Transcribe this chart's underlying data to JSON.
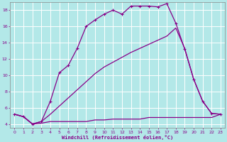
{
  "xlabel": "Windchill (Refroidissement éolien,°C)",
  "background_color": "#b3e8e8",
  "grid_color": "#ffffff",
  "line_color": "#880088",
  "xlim": [
    -0.5,
    23.5
  ],
  "ylim": [
    3.5,
    19.0
  ],
  "yticks": [
    4,
    6,
    8,
    10,
    12,
    14,
    16,
    18
  ],
  "xticks": [
    0,
    1,
    2,
    3,
    4,
    5,
    6,
    7,
    8,
    9,
    10,
    11,
    12,
    13,
    14,
    15,
    16,
    17,
    18,
    19,
    20,
    21,
    22,
    23
  ],
  "series": [
    {
      "x": [
        0,
        1,
        2,
        3,
        4,
        5,
        6,
        7,
        8,
        9,
        10,
        11,
        12,
        13,
        14,
        15,
        16,
        17,
        18,
        19,
        20,
        21,
        22,
        23
      ],
      "y": [
        5.2,
        4.9,
        4.0,
        4.1,
        4.3,
        4.3,
        4.3,
        4.3,
        4.3,
        4.5,
        4.5,
        4.6,
        4.6,
        4.6,
        4.6,
        4.8,
        4.8,
        4.8,
        4.8,
        4.8,
        4.8,
        4.8,
        4.8,
        5.2
      ],
      "marker": false
    },
    {
      "x": [
        0,
        1,
        2,
        3,
        4,
        5,
        6,
        7,
        8,
        9,
        10,
        11,
        12,
        13,
        14,
        15,
        16,
        17,
        18,
        19,
        20,
        21,
        22,
        23
      ],
      "y": [
        5.2,
        4.9,
        4.0,
        4.3,
        5.2,
        6.2,
        7.2,
        8.2,
        9.2,
        10.2,
        11.0,
        11.6,
        12.2,
        12.8,
        13.3,
        13.8,
        14.3,
        14.8,
        15.8,
        13.3,
        9.5,
        6.8,
        5.3,
        5.2
      ],
      "marker": false
    },
    {
      "x": [
        0,
        1,
        2,
        3,
        4,
        5,
        6,
        7,
        8,
        9,
        10,
        11,
        12,
        13,
        14,
        15,
        16,
        17,
        18,
        19,
        20,
        21,
        22,
        23
      ],
      "y": [
        5.2,
        4.9,
        4.0,
        4.3,
        6.8,
        10.3,
        11.2,
        13.3,
        16.0,
        16.8,
        17.5,
        18.0,
        17.5,
        18.5,
        18.5,
        18.5,
        18.4,
        18.8,
        16.4,
        13.2,
        9.5,
        6.8,
        5.3,
        5.2
      ],
      "marker": true
    }
  ]
}
